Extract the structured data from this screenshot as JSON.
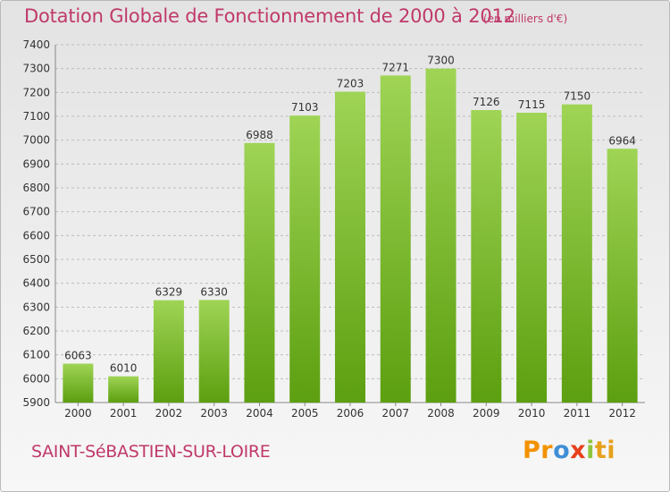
{
  "header": {
    "title": "Dotation Globale de Fonctionnement de 2000 à 2012",
    "subtitle": "(en milliers d'€)"
  },
  "footer": {
    "commune": "SAINT-SéBASTIEN-SUR-LOIRE",
    "logo_parts": [
      "Pr",
      "o",
      "x",
      "i",
      "ti"
    ]
  },
  "colors": {
    "title": "#c0396a",
    "bar_top": "#9fd455",
    "bar_bottom": "#5c9f10",
    "grid": "#bdbdbd"
  },
  "chart_data": {
    "type": "bar",
    "title": "Dotation Globale de Fonctionnement de 2000 à 2012",
    "subtitle": "(en milliers d'€)",
    "xlabel": "",
    "ylabel": "",
    "categories": [
      "2000",
      "2001",
      "2002",
      "2003",
      "2004",
      "2005",
      "2006",
      "2007",
      "2008",
      "2009",
      "2010",
      "2011",
      "2012"
    ],
    "values": [
      6063,
      6010,
      6329,
      6330,
      6988,
      7103,
      7203,
      7271,
      7300,
      7126,
      7115,
      7150,
      6964
    ],
    "ylim": [
      5900,
      7400
    ],
    "yticks": [
      5900,
      6000,
      6100,
      6200,
      6300,
      6400,
      6500,
      6600,
      6700,
      6800,
      6900,
      7000,
      7100,
      7200,
      7300,
      7400
    ],
    "grid": true,
    "grid_style": "dashed horizontal",
    "legend": "none"
  }
}
